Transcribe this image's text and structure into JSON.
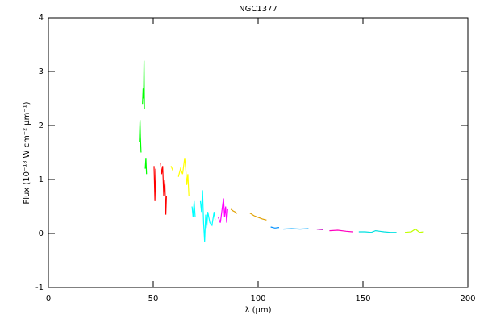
{
  "chart_data": {
    "type": "line",
    "title": "NGC1377",
    "x_label": "λ (μm)",
    "y_label": "Flux (10⁻¹⁸ W cm⁻² μm⁻¹)",
    "xlim": [
      0,
      200
    ],
    "ylim": [
      -1,
      4
    ],
    "xticks": [
      0,
      50,
      100,
      150,
      200
    ],
    "yticks": [
      -1,
      0,
      1,
      2,
      3,
      4
    ],
    "series": [
      {
        "color": "#00ff00",
        "x": [
          43.4,
          43.7,
          43.9,
          44.2,
          null,
          44.9,
          45.2,
          45.4,
          45.6,
          45.8,
          null,
          46.2,
          46.5,
          46.8
        ],
        "values": [
          1.7,
          2.1,
          1.8,
          1.5,
          null,
          2.4,
          2.7,
          2.5,
          3.2,
          2.3,
          null,
          1.2,
          1.4,
          1.1
        ]
      },
      {
        "color": "#ff0000",
        "x": [
          50.4,
          50.8,
          51.2,
          null,
          53.5,
          54.0,
          54.5,
          55.0,
          55.5,
          56.0,
          56.3
        ],
        "values": [
          1.25,
          0.6,
          1.2,
          null,
          1.3,
          1.1,
          1.25,
          0.7,
          1.0,
          0.35,
          0.7
        ]
      },
      {
        "color": "#ffff00",
        "x": [
          58.5,
          59.5,
          null,
          62.0,
          63.0,
          64.0,
          65.0,
          65.5,
          66.0,
          66.5,
          67.0
        ],
        "values": [
          1.25,
          1.15,
          null,
          1.05,
          1.2,
          1.1,
          1.4,
          1.2,
          0.9,
          1.1,
          0.7
        ]
      },
      {
        "color": "#00ffff",
        "x": [
          68.5,
          69.0,
          69.5,
          70.0,
          null,
          72.5,
          73.0,
          73.5,
          74.0,
          74.5,
          75.0,
          75.5,
          76.0,
          77.0,
          78.0,
          79.0,
          79.5
        ],
        "values": [
          0.5,
          0.3,
          0.6,
          0.3,
          null,
          0.6,
          0.4,
          0.8,
          0.2,
          -0.15,
          0.35,
          0.1,
          0.4,
          0.2,
          0.15,
          0.4,
          0.25
        ]
      },
      {
        "color": "#ff00ff",
        "x": [
          81.0,
          82.0,
          83.0,
          83.5,
          84.0,
          84.5,
          85.0,
          85.5
        ],
        "values": [
          0.3,
          0.2,
          0.5,
          0.65,
          0.3,
          0.5,
          0.2,
          0.45
        ]
      },
      {
        "color": "#e0a000",
        "x": [
          87,
          88,
          89,
          90,
          null,
          96,
          98,
          100,
          102,
          104
        ],
        "values": [
          0.45,
          0.42,
          0.4,
          0.37,
          null,
          0.38,
          0.33,
          0.3,
          0.27,
          0.25
        ]
      },
      {
        "color": "#0090ff",
        "x": [
          106,
          108,
          110
        ],
        "values": [
          0.12,
          0.1,
          0.11
        ]
      },
      {
        "color": "#20b0ff",
        "x": [
          112,
          116,
          120,
          124
        ],
        "values": [
          0.08,
          0.09,
          0.08,
          0.09
        ]
      },
      {
        "color": "#c000c0",
        "x": [
          128,
          131
        ],
        "values": [
          0.08,
          0.07
        ]
      },
      {
        "color": "#ff00c0",
        "x": [
          134,
          138,
          142,
          145
        ],
        "values": [
          0.05,
          0.06,
          0.04,
          0.03
        ]
      },
      {
        "color": "#00e0e0",
        "x": [
          148,
          151,
          154,
          156,
          158,
          160,
          163,
          166
        ],
        "values": [
          0.03,
          0.03,
          0.02,
          0.05,
          0.04,
          0.03,
          0.02,
          0.02
        ]
      },
      {
        "color": "#c0ff00",
        "x": [
          170,
          173,
          175,
          177,
          179
        ],
        "values": [
          0.02,
          0.03,
          0.08,
          0.02,
          0.03
        ]
      }
    ]
  }
}
